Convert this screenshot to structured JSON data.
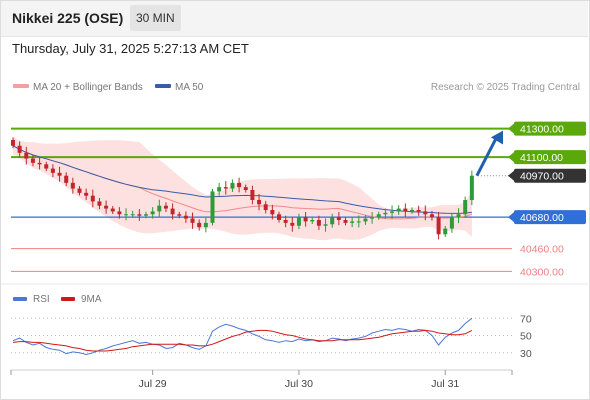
{
  "header": {
    "title": "Nikkei 225 (OSE)",
    "interval": "30 MIN",
    "timestamp": "Thursday, July 31, 2025 5:27:13 AM CET"
  },
  "colors": {
    "candle_up": "#2e9a3a",
    "candle_down": "#c0262b",
    "bollinger_fill": "#fde0e0",
    "ma20": "#f08a8a",
    "ma50": "#3a5ca8",
    "resistance": "#5aa80a",
    "support": "#2f6fd8",
    "lower_level": "#f08080",
    "last_price": "#333333",
    "arrow": "#1f5fb0",
    "rsi": "#4a78d8",
    "rsi_ma": "#d01818"
  },
  "chart_data": [
    {
      "type": "candlestick",
      "title": "",
      "legend": [
        {
          "name": "MA 20 + Bollinger Bands",
          "color": "#f5a0a0"
        },
        {
          "name": "MA 50",
          "color": "#3a5ca8"
        }
      ],
      "legend_position": "top-left",
      "watermark": "Research © 2025 Trading Central",
      "x_ticks": [
        {
          "label": "Jul 29",
          "index": 21
        },
        {
          "label": "Jul 30",
          "index": 43
        },
        {
          "label": "Jul 31",
          "index": 65
        }
      ],
      "ylim": [
        40240,
        41500
      ],
      "closes": [
        41180,
        41130,
        41090,
        41060,
        41050,
        41020,
        40990,
        40970,
        40920,
        40880,
        40850,
        40830,
        40790,
        40760,
        40740,
        40720,
        40700,
        40700,
        40700,
        40690,
        40700,
        40720,
        40760,
        40740,
        40700,
        40690,
        40670,
        40640,
        40610,
        40640,
        40860,
        40890,
        40880,
        40920,
        40890,
        40870,
        40800,
        40770,
        40730,
        40700,
        40660,
        40640,
        40620,
        40680,
        40650,
        40660,
        40620,
        40630,
        40680,
        40660,
        40640,
        40650,
        40650,
        40670,
        40680,
        40700,
        40710,
        40720,
        40740,
        40720,
        40730,
        40720,
        40700,
        40680,
        40560,
        40600,
        40680,
        40700,
        40800,
        40970
      ],
      "levels": [
        {
          "label": "41300.00",
          "value": 41300,
          "kind": "resistance",
          "style": "solid-thick"
        },
        {
          "label": "41100.00",
          "value": 41100,
          "kind": "resistance",
          "style": "solid-thick"
        },
        {
          "label": "40970.00",
          "value": 40970,
          "kind": "last",
          "style": "dotted"
        },
        {
          "label": "40680.00",
          "value": 40680,
          "kind": "support",
          "style": "solid"
        },
        {
          "label": "40460.00",
          "value": 40460,
          "kind": "lower",
          "style": "thin"
        },
        {
          "label": "40300.00",
          "value": 40300,
          "kind": "lower",
          "style": "thin"
        }
      ],
      "forecast": {
        "from": 40970,
        "to": 41300
      }
    },
    {
      "type": "line",
      "title": "",
      "legend": [
        {
          "name": "RSI",
          "color": "#4a78d8"
        },
        {
          "name": "9MA",
          "color": "#d01818"
        }
      ],
      "legend_position": "top-left",
      "ylim": [
        10,
        75
      ],
      "y_ticks": [
        70,
        50,
        30
      ],
      "series": [
        {
          "name": "RSI",
          "values": [
            44,
            47,
            42,
            39,
            41,
            36,
            34,
            33,
            29,
            31,
            30,
            28,
            30,
            33,
            35,
            38,
            40,
            42,
            44,
            41,
            42,
            40,
            39,
            35,
            36,
            41,
            39,
            36,
            34,
            38,
            55,
            60,
            63,
            61,
            58,
            56,
            52,
            49,
            45,
            44,
            42,
            44,
            43,
            46,
            44,
            45,
            43,
            44,
            47,
            46,
            44,
            46,
            47,
            49,
            53,
            55,
            57,
            56,
            58,
            57,
            55,
            57,
            56,
            50,
            39,
            48,
            53,
            56,
            64,
            70
          ]
        },
        {
          "name": "9MA",
          "values": [
            42,
            43,
            43,
            42,
            42,
            41,
            40,
            39,
            38,
            36,
            35,
            33,
            32,
            32,
            32,
            33,
            34,
            35,
            37,
            38,
            39,
            40,
            40,
            40,
            40,
            40,
            39,
            39,
            38,
            38,
            40,
            43,
            46,
            49,
            51,
            54,
            55,
            56,
            56,
            55,
            53,
            51,
            50,
            48,
            46,
            45,
            44,
            44,
            44,
            45,
            45,
            45,
            45,
            46,
            47,
            48,
            50,
            52,
            53,
            54,
            55,
            55,
            56,
            55,
            53,
            52,
            51,
            51,
            52,
            56
          ]
        }
      ]
    }
  ]
}
